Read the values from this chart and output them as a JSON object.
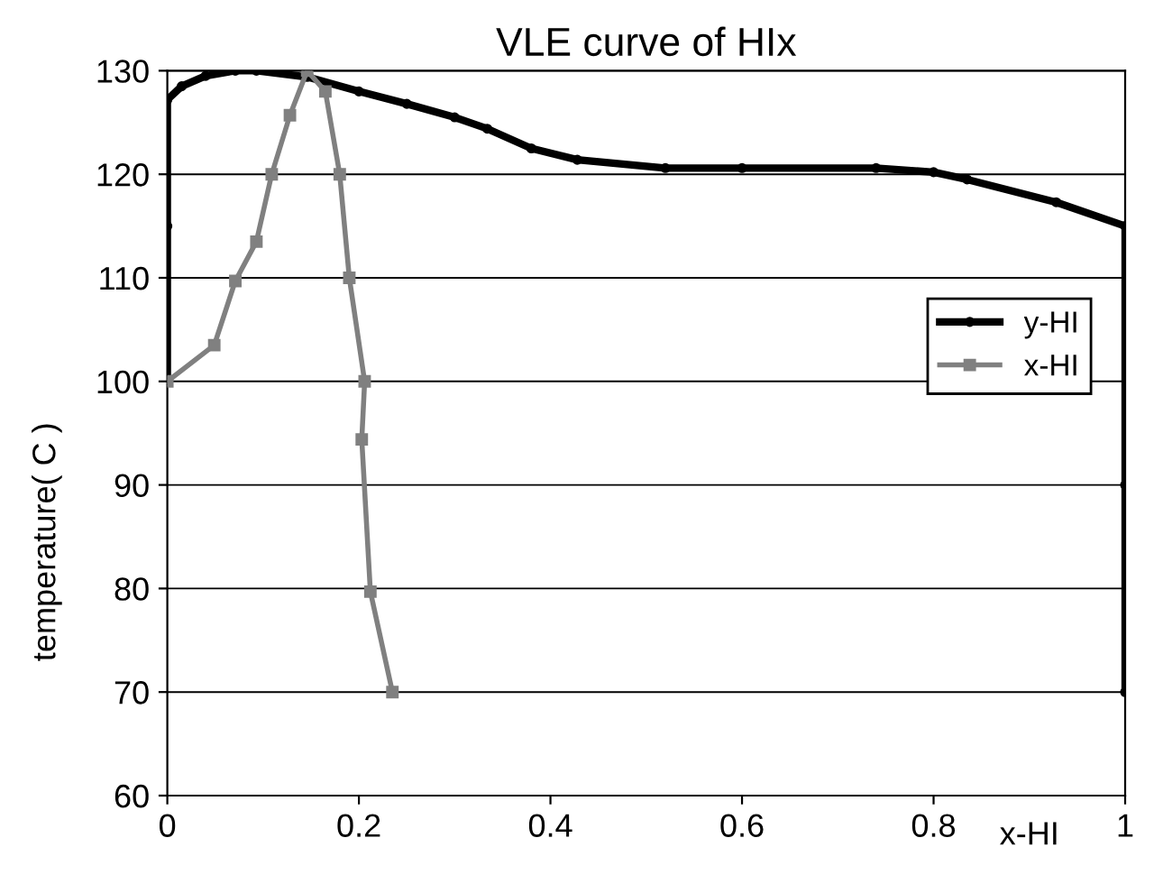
{
  "chart_data": {
    "type": "line",
    "title": "VLE curve of HIx",
    "xlabel": "x-HI",
    "ylabel": "temperature( C )",
    "xlim": [
      0,
      1
    ],
    "ylim": [
      60,
      130
    ],
    "xticks": [
      0,
      0.2,
      0.4,
      0.6,
      0.8,
      1
    ],
    "yticks": [
      60,
      70,
      80,
      90,
      100,
      110,
      120,
      130
    ],
    "grid": "y",
    "legend": "right",
    "line_style": "solid",
    "series": [
      {
        "name": "y-HI",
        "color": "#000000",
        "marker": "circle",
        "x": [
          0,
          0,
          0,
          0.015,
          0.04,
          0.071,
          0.093,
          0.146,
          0.2,
          0.25,
          0.3,
          0.334,
          0.38,
          0.428,
          0.52,
          0.6,
          0.74,
          0.8,
          0.835,
          0.928,
          1,
          1,
          1
        ],
        "values": [
          100,
          115,
          127.2,
          128.5,
          129.5,
          130,
          130,
          129.4,
          128,
          126.8,
          125.5,
          124.4,
          122.5,
          121.4,
          120.6,
          120.6,
          120.6,
          120.2,
          119.5,
          117.3,
          115,
          90,
          70
        ]
      },
      {
        "name": "x-HI",
        "color": "#808080",
        "marker": "square",
        "x": [
          0,
          0.049,
          0.071,
          0.093,
          0.109,
          0.128,
          0.146,
          0.165,
          0.18,
          0.19,
          0.206,
          0.203,
          0.212,
          0.235
        ],
        "values": [
          100,
          103.5,
          109.7,
          113.5,
          120,
          125.7,
          130,
          128,
          120,
          110,
          100,
          94.4,
          79.7,
          70
        ]
      }
    ]
  }
}
